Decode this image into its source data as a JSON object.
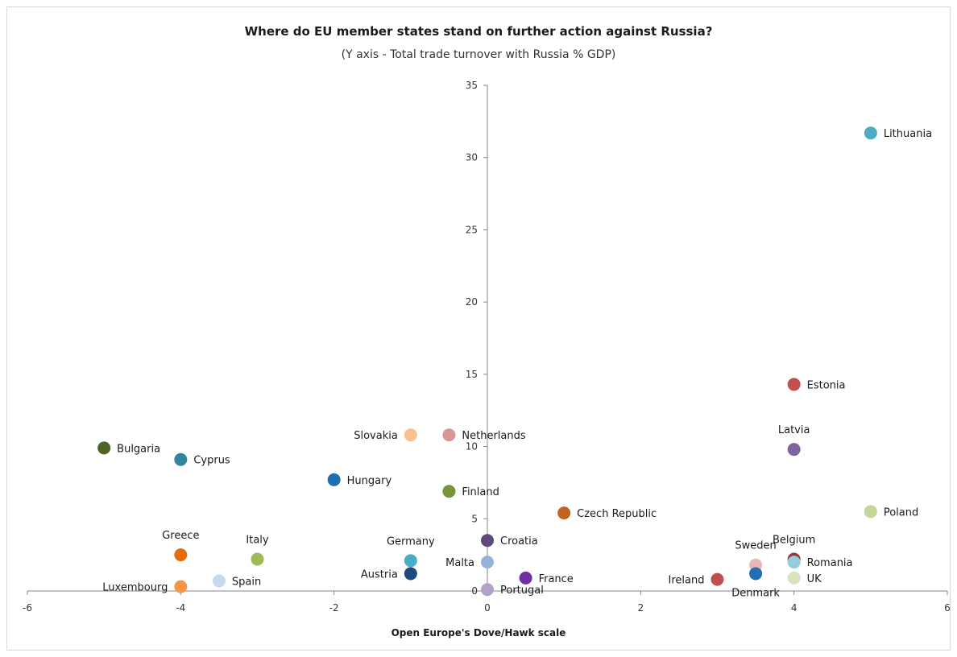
{
  "chart_data": {
    "type": "scatter",
    "title": "Where do EU member states stand on further action against Russia?",
    "subtitle": "(Y axis - Total trade turnover with Russia % GDP)",
    "xlabel": "Open Europe's Dove/Hawk scale",
    "ylabel": "",
    "xlim": [
      -6,
      6
    ],
    "ylim": [
      0,
      35
    ],
    "x_ticks": [
      -6,
      -4,
      -2,
      0,
      2,
      4,
      6
    ],
    "y_ticks": [
      0,
      5,
      10,
      15,
      20,
      25,
      30,
      35
    ],
    "grid": false,
    "legend": "none",
    "points": [
      {
        "label": "Lithuania",
        "x": 5,
        "y": 31.7,
        "color": "#4bacc6",
        "label_pos": "right"
      },
      {
        "label": "Estonia",
        "x": 4,
        "y": 14.3,
        "color": "#c0504d",
        "label_pos": "right"
      },
      {
        "label": "Latvia",
        "x": 4,
        "y": 9.8,
        "color": "#8064a2",
        "label_pos": "above"
      },
      {
        "label": "Poland",
        "x": 5,
        "y": 5.5,
        "color": "#c4d79b",
        "label_pos": "right"
      },
      {
        "label": "Belgium",
        "x": 4,
        "y": 2.2,
        "color": "#953735",
        "label_pos": "above"
      },
      {
        "label": "Romania",
        "x": 4,
        "y": 2.0,
        "color": "#93cddd",
        "label_pos": "right"
      },
      {
        "label": "UK",
        "x": 4,
        "y": 0.9,
        "color": "#d7e4bd",
        "label_pos": "right"
      },
      {
        "label": "Sweden",
        "x": 3.5,
        "y": 1.8,
        "color": "#e6b9b8",
        "label_pos": "above"
      },
      {
        "label": "Denmark",
        "x": 3.5,
        "y": 1.2,
        "color": "#1f6fb2",
        "label_pos": "below"
      },
      {
        "label": "Ireland",
        "x": 3,
        "y": 0.8,
        "color": "#c0504d",
        "label_pos": "left"
      },
      {
        "label": "Czech Republic",
        "x": 1,
        "y": 5.4,
        "color": "#c0651f",
        "label_pos": "right"
      },
      {
        "label": "France",
        "x": 0.5,
        "y": 0.9,
        "color": "#7030a0",
        "label_pos": "right"
      },
      {
        "label": "Croatia",
        "x": 0,
        "y": 3.5,
        "color": "#604a7b",
        "label_pos": "right"
      },
      {
        "label": "Malta",
        "x": 0,
        "y": 2.0,
        "color": "#95b3d7",
        "label_pos": "left"
      },
      {
        "label": "Portugal",
        "x": 0,
        "y": 0.1,
        "color": "#b3a2c7",
        "label_pos": "right"
      },
      {
        "label": "Netherlands",
        "x": -0.5,
        "y": 10.8,
        "color": "#d99694",
        "label_pos": "right"
      },
      {
        "label": "Finland",
        "x": -0.5,
        "y": 6.9,
        "color": "#77933c",
        "label_pos": "right"
      },
      {
        "label": "Slovakia",
        "x": -1,
        "y": 10.8,
        "color": "#fabf8f",
        "label_pos": "left"
      },
      {
        "label": "Germany",
        "x": -1,
        "y": 2.1,
        "color": "#4bacc6",
        "label_pos": "above"
      },
      {
        "label": "Austria",
        "x": -1,
        "y": 1.2,
        "color": "#1f497d",
        "label_pos": "left"
      },
      {
        "label": "Hungary",
        "x": -2,
        "y": 7.7,
        "color": "#1f6fb2",
        "label_pos": "right"
      },
      {
        "label": "Italy",
        "x": -3,
        "y": 2.2,
        "color": "#9bbb59",
        "label_pos": "above"
      },
      {
        "label": "Spain",
        "x": -3.5,
        "y": 0.7,
        "color": "#c5d9f1",
        "label_pos": "right"
      },
      {
        "label": "Greece",
        "x": -4,
        "y": 2.5,
        "color": "#e46c0a",
        "label_pos": "above"
      },
      {
        "label": "Luxembourg",
        "x": -4,
        "y": 0.3,
        "color": "#f79646",
        "label_pos": "left"
      },
      {
        "label": "Cyprus",
        "x": -4,
        "y": 9.1,
        "color": "#31859c",
        "label_pos": "right"
      },
      {
        "label": "Bulgaria",
        "x": -5,
        "y": 9.9,
        "color": "#4f6228",
        "label_pos": "right"
      }
    ]
  }
}
